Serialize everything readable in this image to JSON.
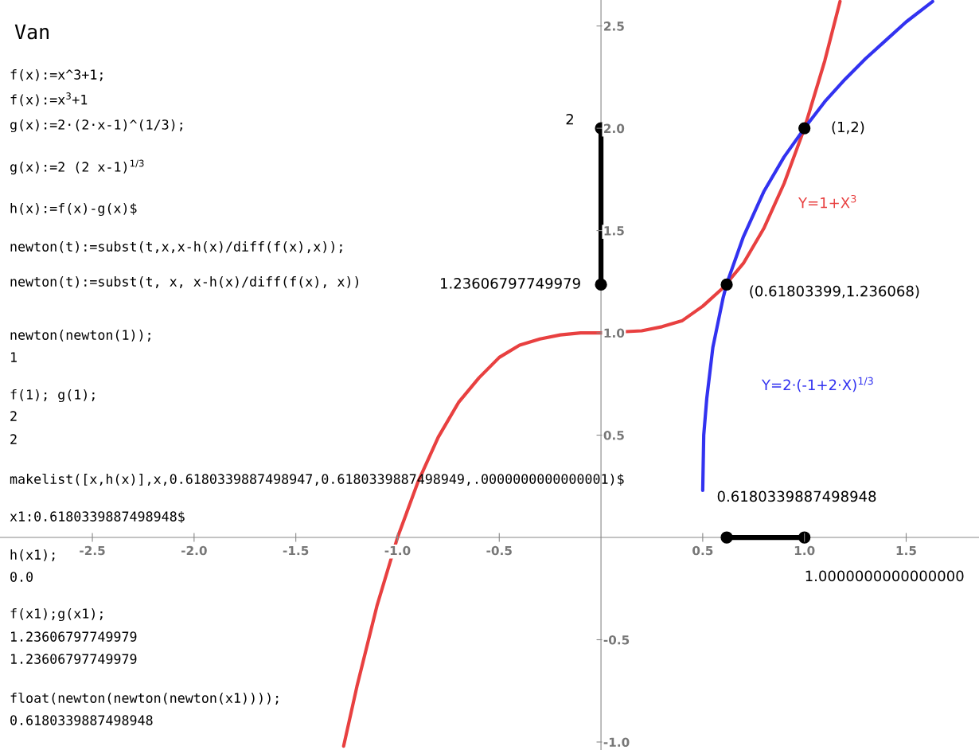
{
  "chart_data": {
    "type": "line",
    "title": "Van",
    "xlim": [
      -2.954,
      1.858
    ],
    "ylim": [
      -1.039,
      2.627
    ],
    "xticks": [
      -2.5,
      {
        "value": -2,
        "label": "-2.0"
      },
      -1.5,
      {
        "value": -1,
        "label": "-1.0"
      },
      -0.5,
      0.5,
      {
        "value": 1,
        "label": "1.0"
      },
      1.5
    ],
    "yticks": [
      {
        "value": -1,
        "label": "-1.0"
      },
      -0.5,
      0.5,
      {
        "value": 1,
        "label": "1.0"
      },
      1.5,
      {
        "value": 2,
        "label": "2.0"
      },
      2.5
    ],
    "grid": false,
    "legend": false,
    "series": [
      {
        "name": "Y=1+X$^{3}$",
        "color": "#e84040",
        "x": [
          -1.265,
          -1.2,
          -1.1,
          -1.0,
          -0.9,
          -0.8,
          -0.7,
          -0.6,
          -0.5,
          -0.4,
          -0.3,
          -0.2,
          -0.1,
          0,
          0.2,
          0.3,
          0.4,
          0.5,
          0.6,
          0.7,
          0.8,
          0.9,
          1.0,
          1.1,
          1.175
        ],
        "values": [
          -1.02,
          -0.73,
          -0.33,
          0.0,
          0.27,
          0.49,
          0.66,
          0.78,
          0.88,
          0.94,
          0.97,
          0.99,
          1.0,
          1.0,
          1.01,
          1.03,
          1.06,
          1.13,
          1.22,
          1.34,
          1.51,
          1.73,
          2.0,
          2.33,
          2.62
        ]
      },
      {
        "name": "Y=2·(-1+2·X)$^{1/3}$",
        "color": "#3232f0",
        "x": [
          0.5,
          0.505,
          0.52,
          0.55,
          0.6,
          0.618,
          0.7,
          0.8,
          0.9,
          1.0,
          1.1,
          1.2,
          1.3,
          1.4,
          1.5,
          1.63
        ],
        "values": [
          0.23,
          0.5,
          0.68,
          0.93,
          1.17,
          1.24,
          1.47,
          1.69,
          1.86,
          2.0,
          2.13,
          2.24,
          2.34,
          2.43,
          2.52,
          2.62
        ]
      },
      {
        "type": "line",
        "marker": "circle",
        "color": "#000000",
        "x": [
          0,
          0
        ],
        "values": [
          1.236,
          2.0
        ]
      },
      {
        "type": "line",
        "marker": "circle",
        "color": "#000000",
        "x": [
          0.618,
          1.0
        ],
        "values": [
          0.0,
          0.0
        ]
      },
      {
        "type": "scatter",
        "marker": "circle",
        "color": "#000000",
        "x": [
          0.618,
          1.0
        ],
        "values": [
          1.236,
          2.0
        ]
      }
    ],
    "annotations": [
      {
        "text": "2",
        "x": 0,
        "y": 2.0
      },
      {
        "text": "1.23606797749979",
        "x": 0,
        "y": 1.236
      },
      {
        "text": "(1,2)",
        "x": 1.0,
        "y": 2.0
      },
      {
        "text": "(0.61803399,1.236068)",
        "x": 0.618,
        "y": 1.236
      },
      {
        "text": "0.6180339887498948",
        "x": 0.618,
        "y": 0.0
      },
      {
        "text": "1.0000000000000000",
        "x": 1.0,
        "y": 0.0
      },
      "f(x):=x^3+1;",
      "f(x):=x$^{3}$+1",
      "g(x):=2·(2·x-1)^(1/3);",
      "g(x):=2 (2 x-1)$^{1/3}$",
      "h(x):=f(x)-g(x)$",
      "newton(t):=subst(t,x,x-h(x)/diff(f(x),x));",
      "newton(t):=subst(t, x, x-h(x)/diff(f(x), x))",
      "newton(newton(1));",
      "1",
      "f(1); g(1);",
      "2",
      "2",
      "makelist([x,h(x)],x,0.6180339887498947,0.6180339887498949,.0000000000000001)$",
      "x1:0.6180339887498948$",
      "h(x1);",
      "0.0",
      "f(x1);g(x1);",
      "1.23606797749979",
      "1.23606797749979",
      "float(newton(newton(newton(x1))));",
      "0.6180339887498948"
    ]
  }
}
